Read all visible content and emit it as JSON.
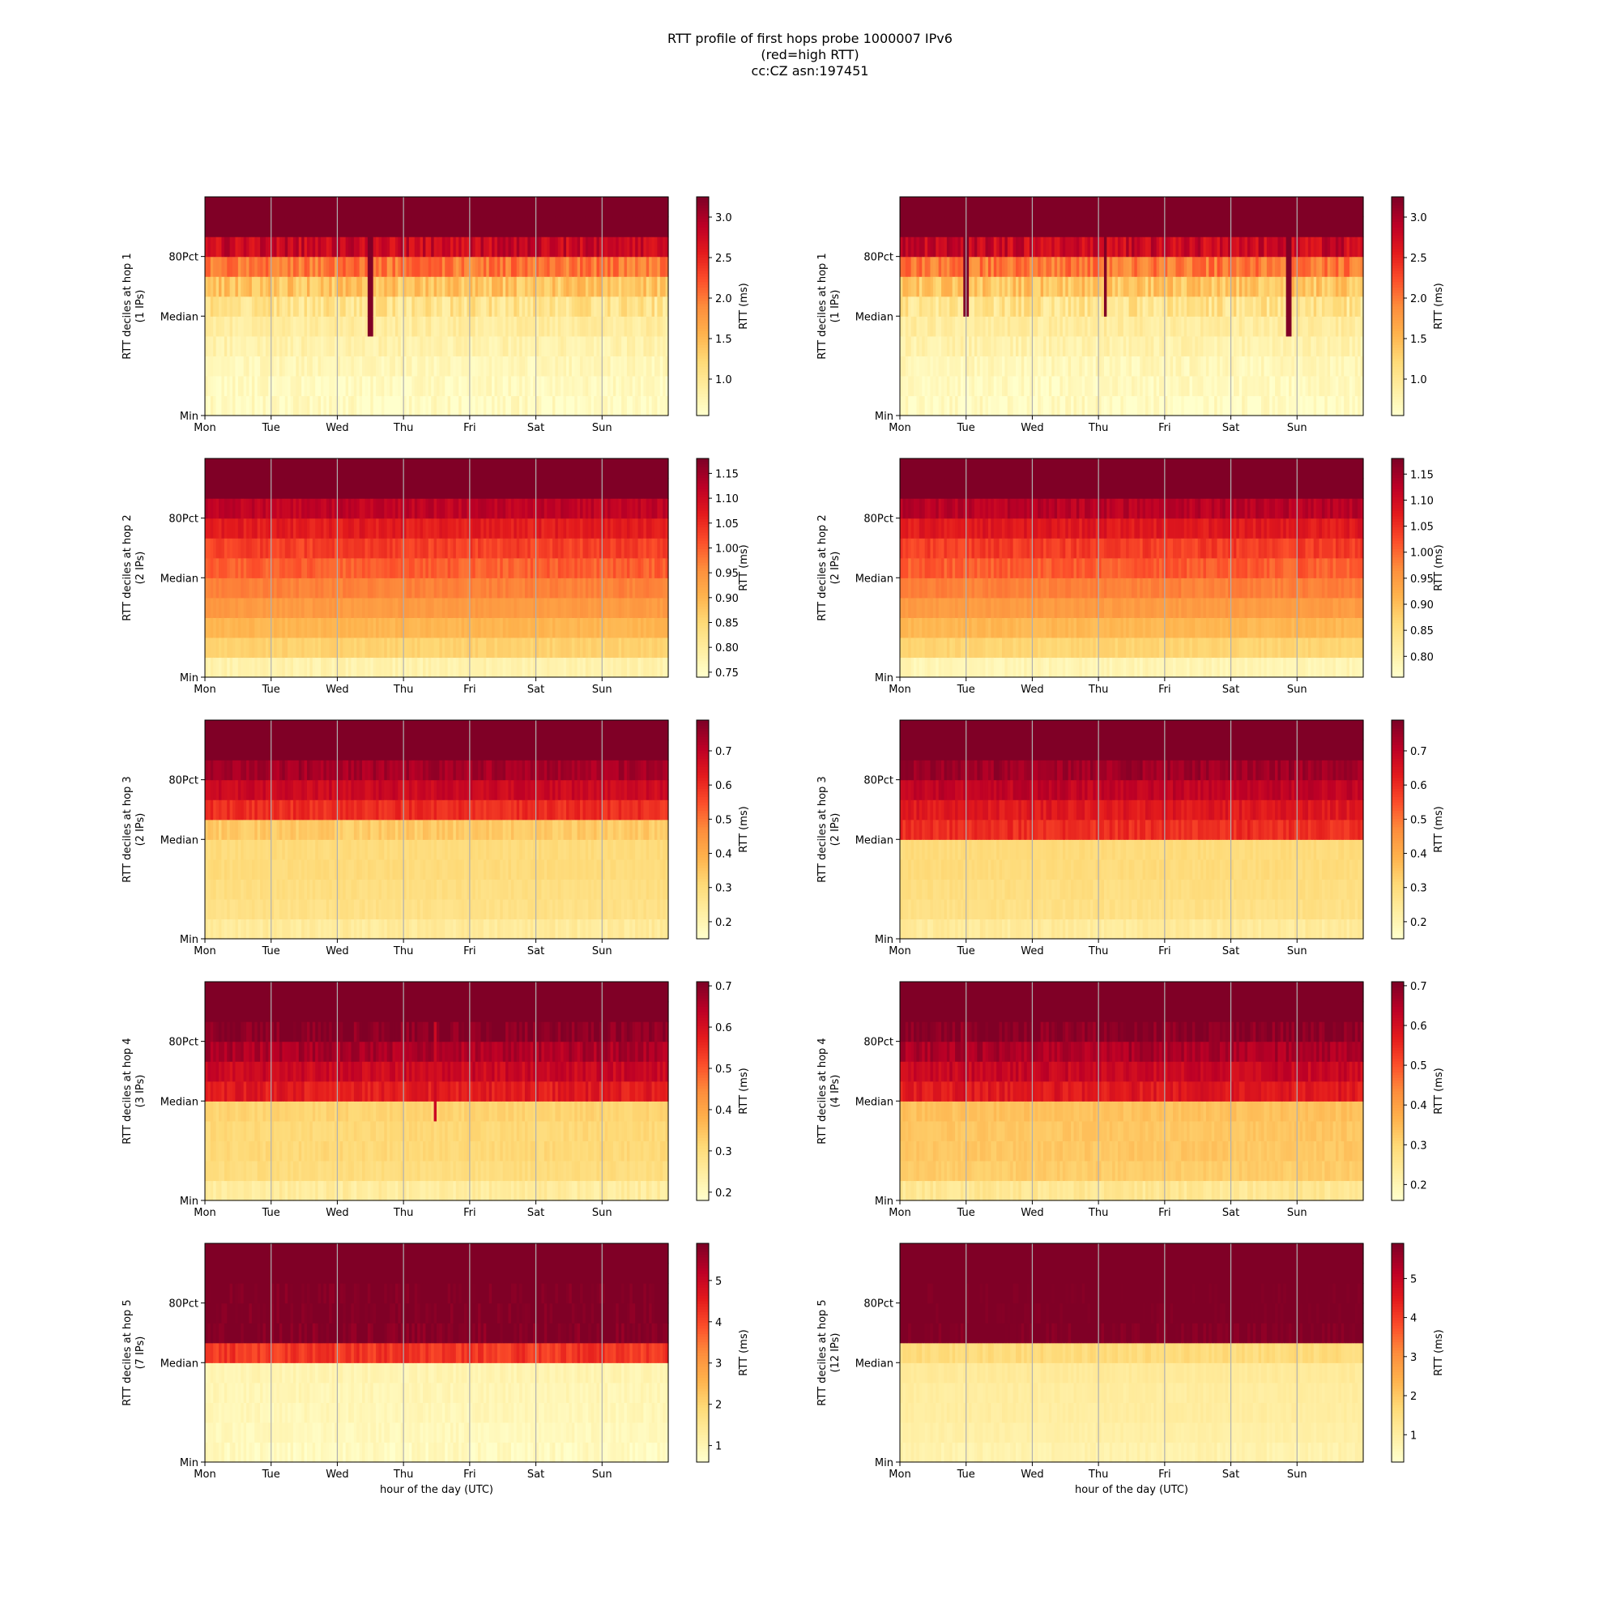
{
  "title_lines": [
    "RTT profile of first hops probe 1000007 IPv6",
    "(red=high RTT)",
    "cc:CZ asn:197451"
  ],
  "colors": {
    "colormap": "YlOrRd",
    "scale": [
      "#ffffcc",
      "#ffeda0",
      "#fed976",
      "#feb24c",
      "#fd8d3c",
      "#fc4e2a",
      "#e31a1c",
      "#bd0026",
      "#800026"
    ],
    "grid_line": "#b0b0b0",
    "axis": "#000000"
  },
  "chart_data": [
    {
      "type": "heatmap",
      "hop": 1,
      "ylabel_lines": [
        "RTT deciles at hop 1",
        "(1 IPs)"
      ],
      "xlabel": "",
      "x_ticks": [
        "Mon",
        "Tue",
        "Wed",
        "Thu",
        "Fri",
        "Sat",
        "Sun"
      ],
      "y_ticks": [
        "Min",
        "Median",
        "80Pct"
      ],
      "grid": true,
      "colorbar_label": "RTT (ms)",
      "colorbar_ticks": [
        1.0,
        1.5,
        2.0,
        2.5,
        3.0
      ],
      "colorbar_tick_labels": [
        "1.0",
        "1.5",
        "2.0",
        "2.5",
        "3.0"
      ],
      "vmin": 0.55,
      "vmax": 3.25,
      "decile_levels": [
        0.6,
        0.65,
        0.7,
        0.8,
        0.9,
        1.05,
        1.4,
        2.0,
        2.8,
        3.3
      ],
      "variability": 0.25,
      "spikes": [
        {
          "day": 2.47,
          "from_decile": 4,
          "to": 3.3
        }
      ]
    },
    {
      "type": "heatmap",
      "hop": 1,
      "ylabel_lines": [
        "RTT deciles at hop 1",
        "(1 IPs)"
      ],
      "xlabel": "",
      "x_ticks": [
        "Mon",
        "Tue",
        "Wed",
        "Thu",
        "Fri",
        "Sat",
        "Sun"
      ],
      "y_ticks": [
        "Min",
        "Median",
        "80Pct"
      ],
      "grid": true,
      "colorbar_label": "RTT (ms)",
      "colorbar_ticks": [
        1.0,
        1.5,
        2.0,
        2.5,
        3.0
      ],
      "colorbar_tick_labels": [
        "1.0",
        "1.5",
        "2.0",
        "2.5",
        "3.0"
      ],
      "vmin": 0.55,
      "vmax": 3.25,
      "decile_levels": [
        0.6,
        0.65,
        0.7,
        0.8,
        0.9,
        1.05,
        1.4,
        2.0,
        2.8,
        3.3
      ],
      "variability": 0.25,
      "spikes": [
        {
          "day": 0.98,
          "from_decile": 5,
          "to": 3.3
        },
        {
          "day": 3.08,
          "from_decile": 5,
          "to": 3.3
        },
        {
          "day": 5.85,
          "from_decile": 4,
          "to": 3.3
        }
      ]
    },
    {
      "type": "heatmap",
      "hop": 2,
      "ylabel_lines": [
        "RTT deciles at hop 2",
        "(2 IPs)"
      ],
      "xlabel": "",
      "x_ticks": [
        "Mon",
        "Tue",
        "Wed",
        "Thu",
        "Fri",
        "Sat",
        "Sun"
      ],
      "y_ticks": [
        "Min",
        "Median",
        "80Pct"
      ],
      "grid": true,
      "colorbar_label": "RTT (ms)",
      "colorbar_ticks": [
        0.75,
        0.8,
        0.85,
        0.9,
        0.95,
        1.0,
        1.05,
        1.1,
        1.15
      ],
      "colorbar_tick_labels": [
        "0.75",
        "0.80",
        "0.85",
        "0.90",
        "0.95",
        "1.00",
        "1.05",
        "1.10",
        "1.15"
      ],
      "vmin": 0.74,
      "vmax": 1.18,
      "decile_levels": [
        0.78,
        0.86,
        0.9,
        0.94,
        0.97,
        1.0,
        1.03,
        1.07,
        1.12,
        1.2
      ],
      "variability": 0.02,
      "spikes": []
    },
    {
      "type": "heatmap",
      "hop": 2,
      "ylabel_lines": [
        "RTT deciles at hop 2",
        "(2 IPs)"
      ],
      "xlabel": "",
      "x_ticks": [
        "Mon",
        "Tue",
        "Wed",
        "Thu",
        "Fri",
        "Sat",
        "Sun"
      ],
      "y_ticks": [
        "Min",
        "Median",
        "80Pct"
      ],
      "grid": true,
      "colorbar_label": "RTT (ms)",
      "colorbar_ticks": [
        0.8,
        0.85,
        0.9,
        0.95,
        1.0,
        1.05,
        1.1,
        1.15
      ],
      "colorbar_tick_labels": [
        "0.80",
        "0.85",
        "0.90",
        "0.95",
        "1.00",
        "1.05",
        "1.10",
        "1.15"
      ],
      "vmin": 0.76,
      "vmax": 1.18,
      "decile_levels": [
        0.79,
        0.87,
        0.91,
        0.95,
        0.98,
        1.01,
        1.04,
        1.08,
        1.13,
        1.2
      ],
      "variability": 0.02,
      "spikes": []
    },
    {
      "type": "heatmap",
      "hop": 3,
      "ylabel_lines": [
        "RTT deciles at hop 3",
        "(2 IPs)"
      ],
      "xlabel": "",
      "x_ticks": [
        "Mon",
        "Tue",
        "Wed",
        "Thu",
        "Fri",
        "Sat",
        "Sun"
      ],
      "y_ticks": [
        "Min",
        "Median",
        "80Pct"
      ],
      "grid": true,
      "colorbar_label": "RTT (ms)",
      "colorbar_ticks": [
        0.2,
        0.3,
        0.4,
        0.5,
        0.6,
        0.7
      ],
      "colorbar_tick_labels": [
        "0.2",
        "0.3",
        "0.4",
        "0.5",
        "0.6",
        "0.7"
      ],
      "vmin": 0.15,
      "vmax": 0.79,
      "decile_levels": [
        0.24,
        0.28,
        0.29,
        0.3,
        0.3,
        0.34,
        0.6,
        0.68,
        0.74,
        0.8
      ],
      "variability": 0.03,
      "spikes": []
    },
    {
      "type": "heatmap",
      "hop": 3,
      "ylabel_lines": [
        "RTT deciles at hop 3",
        "(2 IPs)"
      ],
      "xlabel": "",
      "x_ticks": [
        "Mon",
        "Tue",
        "Wed",
        "Thu",
        "Fri",
        "Sat",
        "Sun"
      ],
      "y_ticks": [
        "Min",
        "Median",
        "80Pct"
      ],
      "grid": true,
      "colorbar_label": "RTT (ms)",
      "colorbar_ticks": [
        0.2,
        0.3,
        0.4,
        0.5,
        0.6,
        0.7
      ],
      "colorbar_tick_labels": [
        "0.2",
        "0.3",
        "0.4",
        "0.5",
        "0.6",
        "0.7"
      ],
      "vmin": 0.15,
      "vmax": 0.79,
      "decile_levels": [
        0.24,
        0.28,
        0.29,
        0.3,
        0.3,
        0.6,
        0.64,
        0.7,
        0.75,
        0.8
      ],
      "variability": 0.03,
      "spikes": []
    },
    {
      "type": "heatmap",
      "hop": 4,
      "ylabel_lines": [
        "RTT deciles at hop 4",
        "(3 IPs)"
      ],
      "xlabel": "",
      "x_ticks": [
        "Mon",
        "Tue",
        "Wed",
        "Thu",
        "Fri",
        "Sat",
        "Sun"
      ],
      "y_ticks": [
        "Min",
        "Median",
        "80Pct"
      ],
      "grid": true,
      "colorbar_label": "RTT (ms)",
      "colorbar_ticks": [
        0.2,
        0.3,
        0.4,
        0.5,
        0.6,
        0.7
      ],
      "colorbar_tick_labels": [
        "0.2",
        "0.3",
        "0.4",
        "0.5",
        "0.6",
        "0.7"
      ],
      "vmin": 0.18,
      "vmax": 0.71,
      "decile_levels": [
        0.25,
        0.3,
        0.31,
        0.31,
        0.32,
        0.58,
        0.62,
        0.66,
        0.7,
        0.72
      ],
      "variability": 0.03,
      "spikes": [
        {
          "day": 3.45,
          "from_decile": 4,
          "to": 0.62
        }
      ]
    },
    {
      "type": "heatmap",
      "hop": 4,
      "ylabel_lines": [
        "RTT deciles at hop 4",
        "(4 IPs)"
      ],
      "xlabel": "",
      "x_ticks": [
        "Mon",
        "Tue",
        "Wed",
        "Thu",
        "Fri",
        "Sat",
        "Sun"
      ],
      "y_ticks": [
        "Min",
        "Median",
        "80Pct"
      ],
      "grid": true,
      "colorbar_label": "RTT (ms)",
      "colorbar_ticks": [
        0.2,
        0.3,
        0.4,
        0.5,
        0.6,
        0.7
      ],
      "colorbar_tick_labels": [
        "0.2",
        "0.3",
        "0.4",
        "0.5",
        "0.6",
        "0.7"
      ],
      "vmin": 0.16,
      "vmax": 0.71,
      "decile_levels": [
        0.25,
        0.32,
        0.33,
        0.33,
        0.34,
        0.58,
        0.62,
        0.66,
        0.7,
        0.72
      ],
      "variability": 0.03,
      "spikes": []
    },
    {
      "type": "heatmap",
      "hop": 5,
      "ylabel_lines": [
        "RTT deciles at hop 5",
        "(7 IPs)"
      ],
      "xlabel": "hour of the day (UTC)",
      "x_ticks": [
        "Mon",
        "Tue",
        "Wed",
        "Thu",
        "Fri",
        "Sat",
        "Sun"
      ],
      "y_ticks": [
        "Min",
        "Median",
        "80Pct"
      ],
      "grid": true,
      "colorbar_label": "RTT (ms)",
      "colorbar_ticks": [
        1,
        2,
        3,
        4,
        5
      ],
      "colorbar_tick_labels": [
        "1",
        "2",
        "3",
        "4",
        "5"
      ],
      "vmin": 0.6,
      "vmax": 5.9,
      "decile_levels": [
        0.8,
        0.85,
        0.9,
        0.95,
        1.0,
        4.2,
        5.9,
        6.0,
        6.0,
        6.0
      ],
      "variability": 0.3,
      "spikes": []
    },
    {
      "type": "heatmap",
      "hop": 5,
      "ylabel_lines": [
        "RTT deciles at hop 5",
        "(12 IPs)"
      ],
      "xlabel": "hour of the day (UTC)",
      "x_ticks": [
        "Mon",
        "Tue",
        "Wed",
        "Thu",
        "Fri",
        "Sat",
        "Sun"
      ],
      "y_ticks": [
        "Min",
        "Median",
        "80Pct"
      ],
      "grid": true,
      "colorbar_label": "RTT (ms)",
      "colorbar_ticks": [
        1,
        2,
        3,
        4,
        5
      ],
      "colorbar_tick_labels": [
        "1",
        "2",
        "3",
        "4",
        "5"
      ],
      "vmin": 0.3,
      "vmax": 5.9,
      "decile_levels": [
        0.8,
        0.9,
        1.0,
        1.0,
        1.1,
        1.6,
        5.9,
        6.0,
        6.0,
        6.0
      ],
      "variability": 0.2,
      "spikes": []
    }
  ]
}
